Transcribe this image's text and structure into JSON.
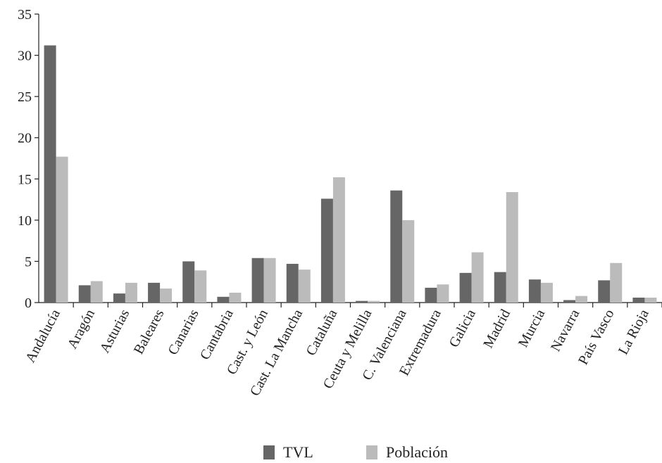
{
  "chart_data": {
    "type": "bar",
    "categories": [
      "Andalucía",
      "Aragón",
      "Asturias",
      "Baleares",
      "Canarias",
      "Cantabria",
      "Cast. y León",
      "Cast. La Mancha",
      "Cataluña",
      "Ceuta y Melilla",
      "C. Valenciana",
      "Extremadura",
      "Galicia",
      "Madrid",
      "Murcia",
      "Navarra",
      "País Vasco",
      "La Rioja"
    ],
    "series": [
      {
        "name": "TVL",
        "color": "#666666",
        "values": [
          31.2,
          2.1,
          1.1,
          2.4,
          5.0,
          0.7,
          5.4,
          4.7,
          12.6,
          0.2,
          13.6,
          1.8,
          3.6,
          3.7,
          2.8,
          0.3,
          2.7,
          0.6
        ]
      },
      {
        "name": "Población",
        "color": "#bbbbbb",
        "values": [
          17.7,
          2.6,
          2.4,
          1.7,
          3.9,
          1.2,
          5.4,
          4.0,
          15.2,
          0.2,
          10.0,
          2.2,
          6.1,
          13.4,
          2.4,
          0.8,
          4.8,
          0.6
        ]
      }
    ],
    "yticks": [
      0,
      5,
      10,
      15,
      20,
      25,
      30,
      35
    ],
    "ylim": [
      0,
      35
    ],
    "title": "",
    "xlabel": "",
    "ylabel": "",
    "grid": false,
    "legend_position": "bottom-center"
  }
}
